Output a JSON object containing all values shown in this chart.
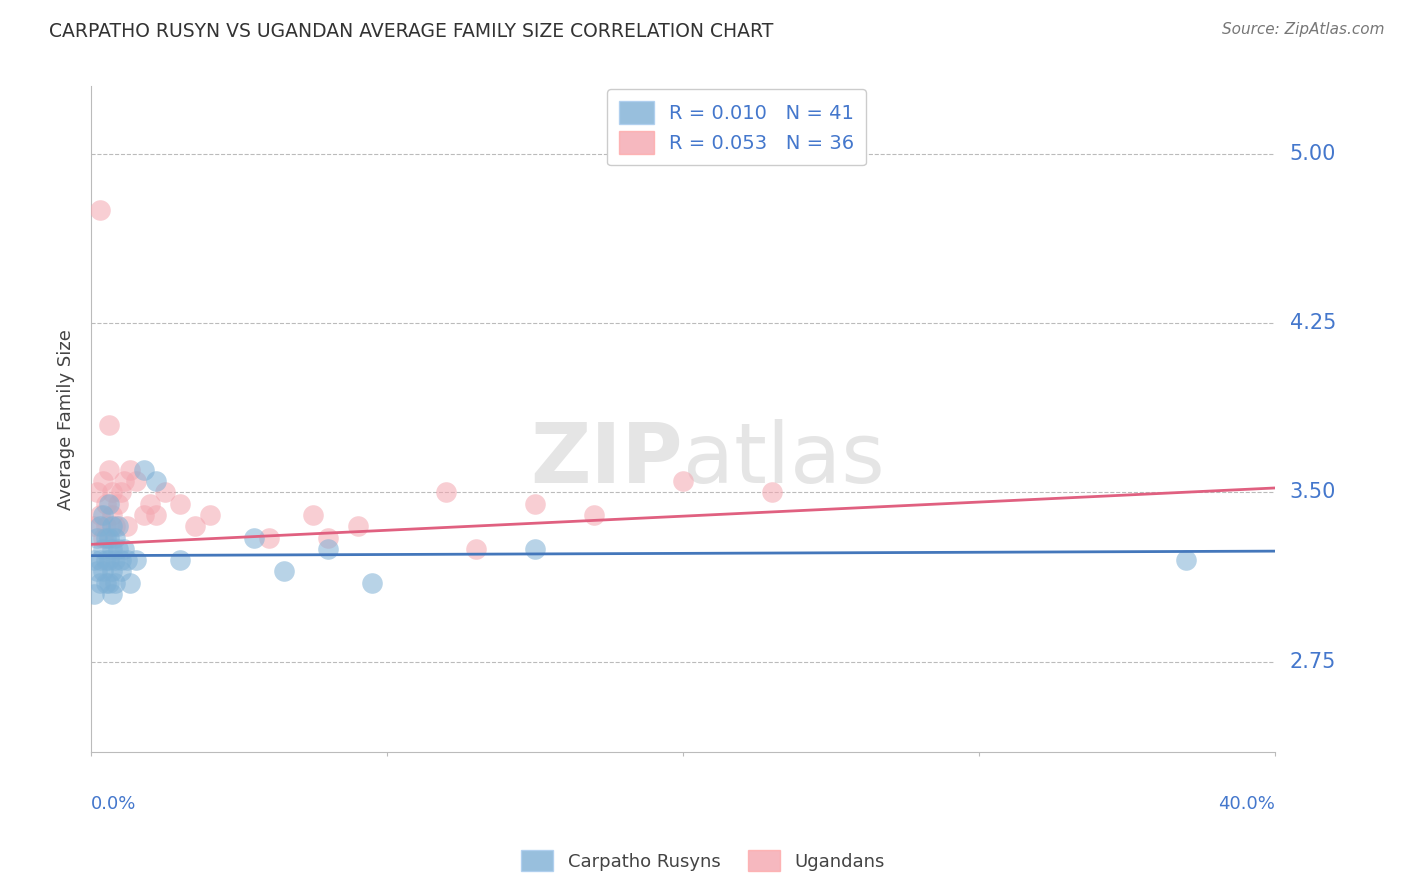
{
  "title": "CARPATHO RUSYN VS UGANDAN AVERAGE FAMILY SIZE CORRELATION CHART",
  "source": "Source: ZipAtlas.com",
  "ylabel": "Average Family Size",
  "ytick_values": [
    2.75,
    3.5,
    4.25,
    5.0
  ],
  "xlim": [
    0.0,
    0.4
  ],
  "ylim": [
    2.35,
    5.3
  ],
  "blue_color": "#7EB0D5",
  "pink_color": "#F4A6B0",
  "line_blue": "#4477BB",
  "line_pink": "#E06080",
  "carpatho_x": [
    0.001,
    0.001,
    0.002,
    0.002,
    0.003,
    0.003,
    0.003,
    0.004,
    0.004,
    0.004,
    0.005,
    0.005,
    0.005,
    0.006,
    0.006,
    0.006,
    0.006,
    0.007,
    0.007,
    0.007,
    0.007,
    0.008,
    0.008,
    0.008,
    0.009,
    0.009,
    0.01,
    0.01,
    0.011,
    0.012,
    0.013,
    0.015,
    0.018,
    0.022,
    0.03,
    0.055,
    0.065,
    0.08,
    0.095,
    0.37,
    0.15
  ],
  "carpatho_y": [
    3.2,
    3.05,
    3.3,
    3.15,
    3.35,
    3.2,
    3.1,
    3.4,
    3.25,
    3.15,
    3.3,
    3.2,
    3.1,
    3.45,
    3.3,
    3.2,
    3.1,
    3.35,
    3.25,
    3.15,
    3.05,
    3.3,
    3.2,
    3.1,
    3.35,
    3.25,
    3.2,
    3.15,
    3.25,
    3.2,
    3.1,
    3.2,
    3.6,
    3.55,
    3.2,
    3.3,
    3.15,
    3.25,
    3.1,
    3.2,
    3.25
  ],
  "ugandan_x": [
    0.001,
    0.002,
    0.003,
    0.003,
    0.004,
    0.004,
    0.005,
    0.005,
    0.006,
    0.006,
    0.007,
    0.007,
    0.008,
    0.009,
    0.01,
    0.011,
    0.012,
    0.013,
    0.015,
    0.018,
    0.02,
    0.022,
    0.025,
    0.03,
    0.035,
    0.04,
    0.06,
    0.075,
    0.09,
    0.12,
    0.15,
    0.17,
    0.2,
    0.23,
    0.13,
    0.08
  ],
  "ugandan_y": [
    3.35,
    3.5,
    3.4,
    4.75,
    3.55,
    3.3,
    3.45,
    3.35,
    3.6,
    3.8,
    3.5,
    3.4,
    3.35,
    3.45,
    3.5,
    3.55,
    3.35,
    3.6,
    3.55,
    3.4,
    3.45,
    3.4,
    3.5,
    3.45,
    3.35,
    3.4,
    3.3,
    3.4,
    3.35,
    3.5,
    3.45,
    3.4,
    3.55,
    3.5,
    3.25,
    3.3
  ],
  "blue_line_x": [
    0.0,
    0.4
  ],
  "blue_line_y": [
    3.22,
    3.24
  ],
  "pink_line_x": [
    0.0,
    0.4
  ],
  "pink_line_y": [
    3.27,
    3.52
  ]
}
